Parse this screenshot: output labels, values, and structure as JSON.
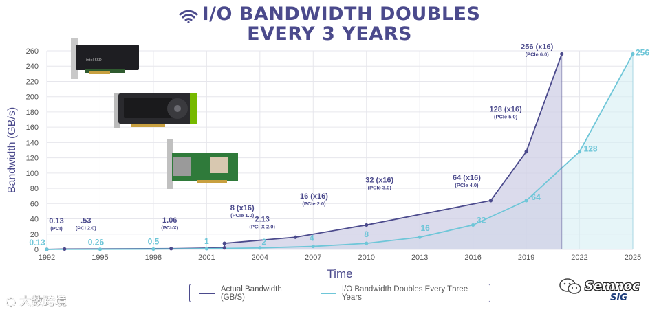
{
  "header": {
    "title_line1": "I/O BANDWIDTH DOUBLES",
    "title_line2": "EVERY 3 YEARS",
    "icon": "wifi-icon"
  },
  "colors": {
    "actual": "#4b4a8c",
    "doubling": "#6ec6d8",
    "actual_fill": "#cfcfe6",
    "doubling_fill": "#d6eef4",
    "grid": "#e6e6ec",
    "axis_text": "#555555"
  },
  "chart_data": {
    "type": "line",
    "title": "I/O BANDWIDTH DOUBLES EVERY 3 YEARS",
    "xlabel": "Time",
    "ylabel": "Bandwidth (GB/s)",
    "xlim": [
      1992,
      2025
    ],
    "ylim": [
      0,
      260
    ],
    "x_ticks": [
      "1992",
      "1995",
      "1998",
      "2001",
      "2004",
      "2007",
      "2010",
      "2013",
      "2016",
      "2019",
      "2022",
      "2025"
    ],
    "y_ticks": [
      "0",
      "20",
      "40",
      "60",
      "80",
      "100",
      "120",
      "140",
      "160",
      "180",
      "200",
      "220",
      "240",
      "260"
    ],
    "grid": true,
    "legend_position": "bottom-center",
    "series": [
      {
        "name": "Actual Bandwidth (GB/S)",
        "points": [
          {
            "x": 1992,
            "y": 0.13,
            "label": "0.13",
            "sublabel": "(PCI)"
          },
          {
            "x": 1993,
            "y": 0.53,
            "label": ".53",
            "sublabel": "(PCI 2.0)"
          },
          {
            "x": 1999,
            "y": 1.06,
            "label": "1.06",
            "sublabel": "(PCI-X)"
          },
          {
            "x": 2002,
            "y": 2.13,
            "label": "2.13",
            "sublabel": "(PCI-X 2.0)"
          },
          {
            "x": 2002,
            "y": 8,
            "label": "8 (x16)",
            "sublabel": "(PCIe 1.0)"
          },
          {
            "x": 2006,
            "y": 16,
            "label": "16 (x16)",
            "sublabel": "(PCIe 2.0)"
          },
          {
            "x": 2010,
            "y": 32,
            "label": "32 (x16)",
            "sublabel": "(PCIe 3.0)"
          },
          {
            "x": 2017,
            "y": 64,
            "label": "64 (x16)",
            "sublabel": "(PCIe 4.0)"
          },
          {
            "x": 2019,
            "y": 128,
            "label": "128 (x16)",
            "sublabel": "(PCIe 5.0)"
          },
          {
            "x": 2021,
            "y": 256,
            "label": "256 (x16)",
            "sublabel": "(PCIe 6.0)"
          }
        ]
      },
      {
        "name": "I/O Bandwidth Doubles Every Three Years",
        "points": [
          {
            "x": 1992,
            "y": 0.13,
            "label": "0.13"
          },
          {
            "x": 1995,
            "y": 0.26,
            "label": "0.26"
          },
          {
            "x": 1998,
            "y": 0.5,
            "label": "0.5"
          },
          {
            "x": 2001,
            "y": 1,
            "label": "1"
          },
          {
            "x": 2004,
            "y": 2,
            "label": "2"
          },
          {
            "x": 2007,
            "y": 4,
            "label": "4"
          },
          {
            "x": 2010,
            "y": 8,
            "label": "8"
          },
          {
            "x": 2013,
            "y": 16,
            "label": "16"
          },
          {
            "x": 2016,
            "y": 32,
            "label": "32"
          },
          {
            "x": 2019,
            "y": 64,
            "label": "64"
          },
          {
            "x": 2022,
            "y": 128,
            "label": "128"
          },
          {
            "x": 2025,
            "y": 256,
            "label": "256"
          }
        ]
      }
    ]
  },
  "legend": {
    "actual_label": "Actual Bandwidth (GB/S)",
    "doubling_label": "I/O Bandwidth Doubles Every Three Years"
  },
  "logo": {
    "brand_text": "Semnoc",
    "sig_text": "SIG"
  },
  "watermark": {
    "text": "大数跨境"
  }
}
